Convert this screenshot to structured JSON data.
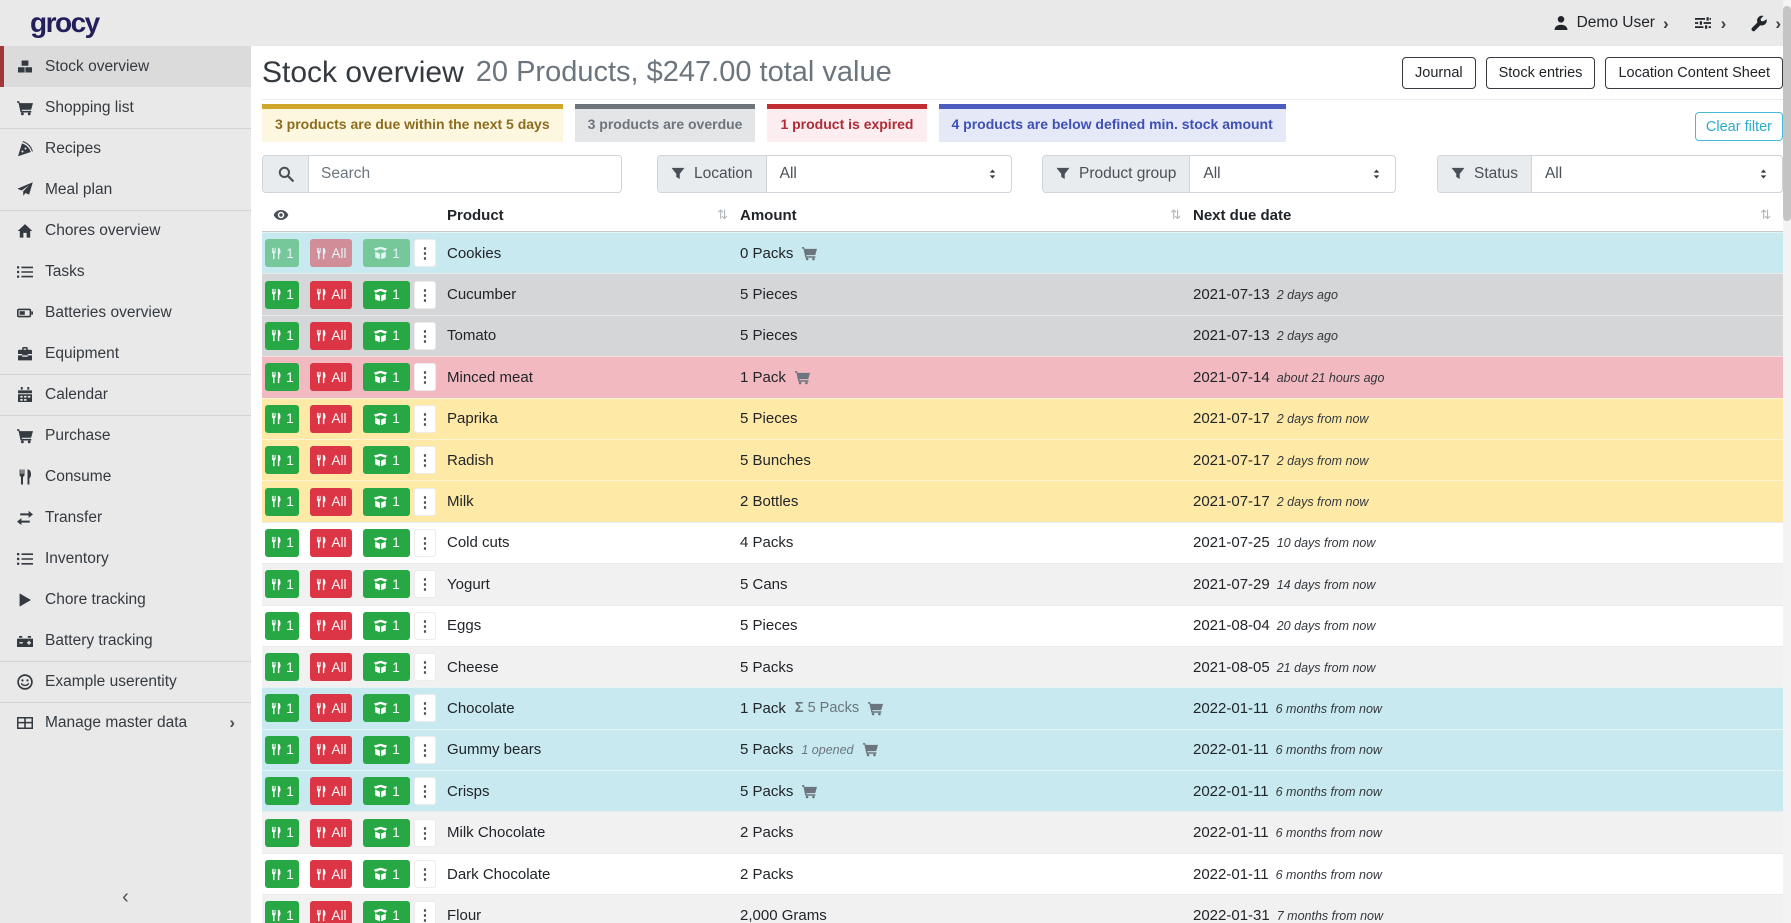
{
  "app": {
    "logo": "grocy"
  },
  "topbar": {
    "user_label": "Demo User",
    "icons": [
      "user-icon",
      "sliders-icon",
      "wrench-icon"
    ]
  },
  "sidebar": {
    "items": [
      {
        "label": "Stock overview",
        "icon": "boxes-icon",
        "active": true
      },
      {
        "label": "Shopping list",
        "icon": "shopping-cart-icon"
      },
      {
        "label": "Recipes",
        "icon": "pizza-icon",
        "divider": true
      },
      {
        "label": "Meal plan",
        "icon": "paper-plane-icon"
      },
      {
        "label": "Chores overview",
        "icon": "home-icon",
        "divider": true
      },
      {
        "label": "Tasks",
        "icon": "tasks-icon"
      },
      {
        "label": "Batteries overview",
        "icon": "battery-icon"
      },
      {
        "label": "Equipment",
        "icon": "toolbox-icon"
      },
      {
        "label": "Calendar",
        "icon": "calendar-icon",
        "divider": true
      },
      {
        "label": "Purchase",
        "icon": "shopping-cart-icon",
        "divider": true
      },
      {
        "label": "Consume",
        "icon": "utensils-icon"
      },
      {
        "label": "Transfer",
        "icon": "exchange-icon"
      },
      {
        "label": "Inventory",
        "icon": "list-icon"
      },
      {
        "label": "Chore tracking",
        "icon": "play-icon"
      },
      {
        "label": "Battery tracking",
        "icon": "car-battery-icon"
      },
      {
        "label": "Example userentity",
        "icon": "smiley-icon",
        "divider": true
      },
      {
        "label": "Manage master data",
        "icon": "table-icon",
        "divider": true,
        "chevron": "›"
      }
    ],
    "collapse_icon": "‹"
  },
  "header": {
    "title": "Stock overview",
    "subtitle": "20 Products, $247.00 total value",
    "buttons": [
      "Journal",
      "Stock entries",
      "Location Content Sheet"
    ]
  },
  "banners": [
    {
      "text": "3 products are due within the next 5 days",
      "type": "due"
    },
    {
      "text": "3 products are overdue",
      "type": "overdue"
    },
    {
      "text": "1 product is expired",
      "type": "expired"
    },
    {
      "text": "4 products are below defined min. stock amount",
      "type": "below-min"
    }
  ],
  "filters": {
    "search_placeholder": "Search",
    "clear_label": "Clear filter",
    "groups": [
      {
        "label": "Location",
        "value": "All"
      },
      {
        "label": "Product group",
        "value": "All"
      },
      {
        "label": "Status",
        "value": "All"
      }
    ]
  },
  "table": {
    "columns": [
      "Product",
      "Amount",
      "Next due date"
    ],
    "sort_icon": "⇅",
    "sigma": "Σ",
    "dots_icon": "⋮",
    "row_buttons": {
      "consume_one": "1",
      "consume_all": "All",
      "open_one": "1"
    },
    "rows": [
      {
        "product": "Cookies",
        "amount": "0 Packs",
        "cart": true,
        "due": "",
        "rel": "",
        "status": "info",
        "muted_buttons": true
      },
      {
        "product": "Cucumber",
        "amount": "5 Pieces",
        "due": "2021-07-13",
        "rel": "2 days ago",
        "status": "overdue"
      },
      {
        "product": "Tomato",
        "amount": "5 Pieces",
        "due": "2021-07-13",
        "rel": "2 days ago",
        "status": "overdue"
      },
      {
        "product": "Minced meat",
        "amount": "1 Pack",
        "cart": true,
        "due": "2021-07-14",
        "rel": "about 21 hours ago",
        "status": "expired"
      },
      {
        "product": "Paprika",
        "amount": "5 Pieces",
        "due": "2021-07-17",
        "rel": "2 days from now",
        "status": "due"
      },
      {
        "product": "Radish",
        "amount": "5 Bunches",
        "due": "2021-07-17",
        "rel": "2 days from now",
        "status": "due"
      },
      {
        "product": "Milk",
        "amount": "2 Bottles",
        "due": "2021-07-17",
        "rel": "2 days from now",
        "status": "due"
      },
      {
        "product": "Cold cuts",
        "amount": "4 Packs",
        "due": "2021-07-25",
        "rel": "10 days from now",
        "status": ""
      },
      {
        "product": "Yogurt",
        "amount": "5 Cans",
        "due": "2021-07-29",
        "rel": "14 days from now",
        "status": "striped"
      },
      {
        "product": "Eggs",
        "amount": "5 Pieces",
        "due": "2021-08-04",
        "rel": "20 days from now",
        "status": ""
      },
      {
        "product": "Cheese",
        "amount": "5 Packs",
        "due": "2021-08-05",
        "rel": "21 days from now",
        "status": "striped"
      },
      {
        "product": "Chocolate",
        "amount": "1 Pack",
        "aggregate": "5 Packs",
        "cart": true,
        "due": "2022-01-11",
        "rel": "6 months from now",
        "status": "info"
      },
      {
        "product": "Gummy bears",
        "amount": "5 Packs",
        "opened": "1 opened",
        "cart": true,
        "due": "2022-01-11",
        "rel": "6 months from now",
        "status": "info"
      },
      {
        "product": "Crisps",
        "amount": "5 Packs",
        "cart": true,
        "due": "2022-01-11",
        "rel": "6 months from now",
        "status": "info"
      },
      {
        "product": "Milk Chocolate",
        "amount": "2 Packs",
        "due": "2022-01-11",
        "rel": "6 months from now",
        "status": "striped"
      },
      {
        "product": "Dark Chocolate",
        "amount": "2 Packs",
        "due": "2022-01-11",
        "rel": "6 months from now",
        "status": ""
      },
      {
        "product": "Flour",
        "amount": "2,000 Grams",
        "due": "2022-01-31",
        "rel": "7 months from now",
        "status": "striped"
      }
    ]
  }
}
